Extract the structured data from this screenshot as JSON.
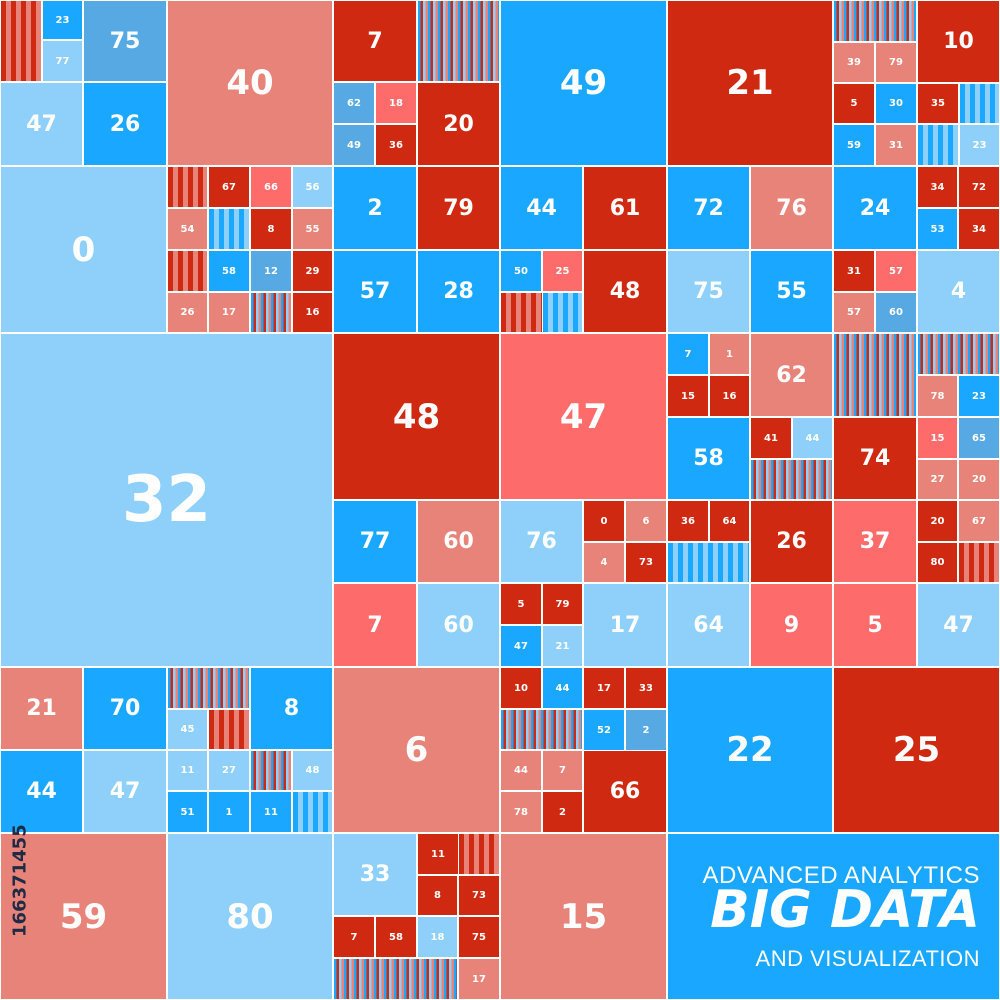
{
  "palette": {
    "blue_bright": "#1aa7ff",
    "blue_light": "#8ed0fa",
    "blue_mid": "#56a9e3",
    "red_dark": "#cf2a11",
    "red_muted": "#e8837a",
    "red_coral": "#fd6b6b"
  },
  "tiles": [
    {
      "label": "23"
    },
    {
      "label": "75"
    },
    {
      "label": "77"
    },
    {
      "label": "47"
    },
    {
      "label": "26"
    },
    {
      "label": "40"
    },
    {
      "label": "7"
    },
    {
      "label": "62"
    },
    {
      "label": "18"
    },
    {
      "label": "49"
    },
    {
      "label": "36"
    },
    {
      "label": "20"
    },
    {
      "label": "49"
    },
    {
      "label": "21"
    },
    {
      "label": "39"
    },
    {
      "label": "79"
    },
    {
      "label": "10"
    },
    {
      "label": "5"
    },
    {
      "label": "30"
    },
    {
      "label": "35"
    },
    {
      "label": "59"
    },
    {
      "label": "31"
    },
    {
      "label": "23"
    },
    {
      "label": "0"
    },
    {
      "label": "67"
    },
    {
      "label": "66"
    },
    {
      "label": "56"
    },
    {
      "label": "54"
    },
    {
      "label": "8"
    },
    {
      "label": "55"
    },
    {
      "label": "58"
    },
    {
      "label": "12"
    },
    {
      "label": "29"
    },
    {
      "label": "26"
    },
    {
      "label": "17"
    },
    {
      "label": "16"
    },
    {
      "label": "2"
    },
    {
      "label": "79"
    },
    {
      "label": "57"
    },
    {
      "label": "28"
    },
    {
      "label": "44"
    },
    {
      "label": "61"
    },
    {
      "label": "50"
    },
    {
      "label": "25"
    },
    {
      "label": "48"
    },
    {
      "label": "72"
    },
    {
      "label": "76"
    },
    {
      "label": "75"
    },
    {
      "label": "55"
    },
    {
      "label": "24"
    },
    {
      "label": "34"
    },
    {
      "label": "72"
    },
    {
      "label": "53"
    },
    {
      "label": "34"
    },
    {
      "label": "31"
    },
    {
      "label": "57"
    },
    {
      "label": "57"
    },
    {
      "label": "60"
    },
    {
      "label": "4"
    },
    {
      "label": "32"
    },
    {
      "label": "48"
    },
    {
      "label": "47"
    },
    {
      "label": "7"
    },
    {
      "label": "1"
    },
    {
      "label": "15"
    },
    {
      "label": "16"
    },
    {
      "label": "62"
    },
    {
      "label": "58"
    },
    {
      "label": "41"
    },
    {
      "label": "44"
    },
    {
      "label": "74"
    },
    {
      "label": "78"
    },
    {
      "label": "23"
    },
    {
      "label": "15"
    },
    {
      "label": "65"
    },
    {
      "label": "27"
    },
    {
      "label": "20"
    },
    {
      "label": "20"
    },
    {
      "label": "67"
    },
    {
      "label": "80"
    },
    {
      "label": "77"
    },
    {
      "label": "60"
    },
    {
      "label": "76"
    },
    {
      "label": "0"
    },
    {
      "label": "6"
    },
    {
      "label": "4"
    },
    {
      "label": "73"
    },
    {
      "label": "36"
    },
    {
      "label": "64"
    },
    {
      "label": "26"
    },
    {
      "label": "37"
    },
    {
      "label": "7"
    },
    {
      "label": "60"
    },
    {
      "label": "5"
    },
    {
      "label": "79"
    },
    {
      "label": "47"
    },
    {
      "label": "21"
    },
    {
      "label": "17"
    },
    {
      "label": "64"
    },
    {
      "label": "9"
    },
    {
      "label": "5"
    },
    {
      "label": "47"
    },
    {
      "label": "21"
    },
    {
      "label": "70"
    },
    {
      "label": "8"
    },
    {
      "label": "45"
    },
    {
      "label": "11"
    },
    {
      "label": "27"
    },
    {
      "label": "48"
    },
    {
      "label": "51"
    },
    {
      "label": "1"
    },
    {
      "label": "11"
    },
    {
      "label": "44"
    },
    {
      "label": "47"
    },
    {
      "label": "6"
    },
    {
      "label": "10"
    },
    {
      "label": "44"
    },
    {
      "label": "17"
    },
    {
      "label": "33"
    },
    {
      "label": "52"
    },
    {
      "label": "2"
    },
    {
      "label": "44"
    },
    {
      "label": "7"
    },
    {
      "label": "78"
    },
    {
      "label": "2"
    },
    {
      "label": "66"
    },
    {
      "label": "22"
    },
    {
      "label": "25"
    },
    {
      "label": "59"
    },
    {
      "label": "80"
    },
    {
      "label": "33"
    },
    {
      "label": "11"
    },
    {
      "label": "8"
    },
    {
      "label": "73"
    },
    {
      "label": "7"
    },
    {
      "label": "58"
    },
    {
      "label": "18"
    },
    {
      "label": "75"
    },
    {
      "label": "17"
    },
    {
      "label": "15"
    }
  ],
  "brand": {
    "line1": "ADVANCED ANALYTICS",
    "line2": "BIG DATA",
    "line3": "AND VISUALIZATION"
  },
  "stock_id": "166371455"
}
